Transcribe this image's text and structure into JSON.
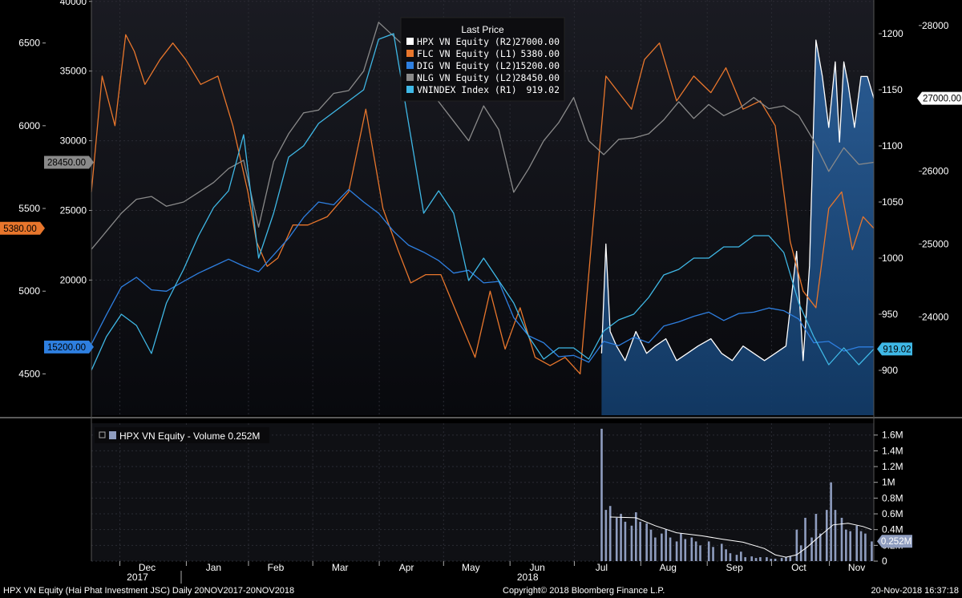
{
  "chart_data": [
    {
      "type": "line",
      "legend_title": "Last Price",
      "legend_position": "top-center",
      "grid": true,
      "x_ticks": [
        {
          "label": "Dec",
          "date": "2017-12-16"
        },
        {
          "label": "Jan",
          "date": "2018-01-16"
        },
        {
          "label": "Feb",
          "date": "2018-02-14"
        },
        {
          "label": "Mar",
          "date": "2018-03-16"
        },
        {
          "label": "Apr",
          "date": "2018-04-16"
        },
        {
          "label": "May",
          "date": "2018-05-16"
        },
        {
          "label": "Jun",
          "date": "2018-06-16"
        },
        {
          "label": "Jul",
          "date": "2018-07-16"
        },
        {
          "label": "Aug",
          "date": "2018-08-16"
        },
        {
          "label": "Sep",
          "date": "2018-09-16"
        },
        {
          "label": "Oct",
          "date": "2018-10-16"
        },
        {
          "label": "Nov",
          "date": "2018-11-12"
        }
      ],
      "year_labels": [
        {
          "label": "2017",
          "date": "2017-12-16"
        },
        {
          "label": "2018",
          "date": "2018-06-16"
        }
      ],
      "x_range": [
        "2017-11-20",
        "2018-11-20"
      ],
      "axes": {
        "L1": {
          "side": "left-outer",
          "ticks": [
            "6500",
            "6000",
            "5500",
            "5000",
            "4500"
          ],
          "range": [
            4250,
            6760
          ]
        },
        "L2": {
          "side": "left-inner",
          "ticks": [
            "40000",
            "35000",
            "30000",
            "25000",
            "20000"
          ],
          "range": [
            10300,
            40100
          ]
        },
        "R1": {
          "side": "right-inner",
          "ticks": [
            "1200",
            "1150",
            "1100",
            "1050",
            "1000",
            "950",
            "900"
          ],
          "range": [
            860,
            1230
          ]
        },
        "R2": {
          "side": "right-outer",
          "ticks": [
            "28000",
            "26000",
            "25000",
            "24000"
          ],
          "range": [
            22650,
            28350
          ]
        }
      },
      "series": [
        {
          "name": "HPX VN Equity",
          "axis_tag": "(R2)",
          "value": "27000.00",
          "color": "#ffffff",
          "fill": true,
          "dates": [
            "2018-07-16",
            "2018-07-18",
            "2018-07-20",
            "2018-07-23",
            "2018-07-27",
            "2018-08-01",
            "2018-08-06",
            "2018-08-10",
            "2018-08-15",
            "2018-08-20",
            "2018-08-25",
            "2018-08-30",
            "2018-09-05",
            "2018-09-10",
            "2018-09-15",
            "2018-09-20",
            "2018-09-25",
            "2018-09-30",
            "2018-10-05",
            "2018-10-10",
            "2018-10-15",
            "2018-10-18",
            "2018-10-21",
            "2018-10-24",
            "2018-10-27",
            "2018-10-30",
            "2018-11-02",
            "2018-11-04",
            "2018-11-06",
            "2018-11-08",
            "2018-11-11",
            "2018-11-14",
            "2018-11-17",
            "2018-11-20"
          ],
          "values": [
            23500,
            25000,
            23800,
            23600,
            23400,
            23800,
            23500,
            23600,
            23700,
            23400,
            23500,
            23600,
            23700,
            23500,
            23400,
            23600,
            23500,
            23400,
            23500,
            23600,
            24900,
            23400,
            24700,
            27800,
            27300,
            26600,
            27500,
            26400,
            27500,
            27200,
            26600,
            27300,
            27300,
            27000
          ]
        },
        {
          "name": "FLC VN Equity",
          "axis_tag": "(L1)",
          "value": "5380.00",
          "color": "#e8762c",
          "fill": false,
          "dates": [
            "2017-11-20",
            "2017-11-25",
            "2017-12-01",
            "2017-12-06",
            "2017-12-10",
            "2017-12-15",
            "2017-12-22",
            "2017-12-28",
            "2018-01-03",
            "2018-01-10",
            "2018-01-18",
            "2018-01-25",
            "2018-02-01",
            "2018-02-05",
            "2018-02-10",
            "2018-02-15",
            "2018-02-22",
            "2018-03-01",
            "2018-03-10",
            "2018-03-20",
            "2018-03-28",
            "2018-04-05",
            "2018-04-12",
            "2018-04-18",
            "2018-04-25",
            "2018-05-02",
            "2018-05-10",
            "2018-05-18",
            "2018-05-25",
            "2018-06-01",
            "2018-06-08",
            "2018-06-15",
            "2018-06-22",
            "2018-06-29",
            "2018-07-06",
            "2018-07-12",
            "2018-07-18",
            "2018-07-24",
            "2018-07-30",
            "2018-08-05",
            "2018-08-12",
            "2018-08-20",
            "2018-08-28",
            "2018-09-05",
            "2018-09-12",
            "2018-09-20",
            "2018-09-28",
            "2018-10-05",
            "2018-10-12",
            "2018-10-18",
            "2018-10-24",
            "2018-10-30",
            "2018-11-05",
            "2018-11-10",
            "2018-11-15",
            "2018-11-20"
          ],
          "values": [
            5600,
            6300,
            6000,
            6550,
            6450,
            6250,
            6400,
            6500,
            6400,
            6250,
            6300,
            6000,
            5600,
            5300,
            5150,
            5200,
            5400,
            5400,
            5450,
            5600,
            6100,
            5500,
            5250,
            5050,
            5100,
            5100,
            4850,
            4600,
            5000,
            4650,
            4900,
            4600,
            4550,
            4600,
            4500,
            5400,
            6300,
            6200,
            6100,
            6400,
            6500,
            6150,
            6300,
            6200,
            6350,
            6100,
            6150,
            6000,
            5300,
            5000,
            4900,
            5500,
            5600,
            5250,
            5450,
            5380
          ]
        },
        {
          "name": "DIG VN Equity",
          "axis_tag": "(L2)",
          "value": "15200.00",
          "color": "#2e7fe0",
          "fill": false,
          "dates": [
            "2017-11-20",
            "2017-11-27",
            "2017-12-04",
            "2017-12-11",
            "2017-12-18",
            "2017-12-25",
            "2018-01-02",
            "2018-01-09",
            "2018-01-16",
            "2018-01-23",
            "2018-01-30",
            "2018-02-06",
            "2018-02-13",
            "2018-02-20",
            "2018-02-27",
            "2018-03-06",
            "2018-03-13",
            "2018-03-20",
            "2018-03-27",
            "2018-04-03",
            "2018-04-10",
            "2018-04-17",
            "2018-04-24",
            "2018-05-01",
            "2018-05-08",
            "2018-05-15",
            "2018-05-22",
            "2018-05-29",
            "2018-06-05",
            "2018-06-12",
            "2018-06-19",
            "2018-06-26",
            "2018-07-03",
            "2018-07-10",
            "2018-07-17",
            "2018-07-24",
            "2018-07-31",
            "2018-08-07",
            "2018-08-14",
            "2018-08-21",
            "2018-08-28",
            "2018-09-04",
            "2018-09-11",
            "2018-09-18",
            "2018-09-25",
            "2018-10-02",
            "2018-10-09",
            "2018-10-16",
            "2018-10-23",
            "2018-10-30",
            "2018-11-06",
            "2018-11-13",
            "2018-11-20"
          ],
          "values": [
            15400,
            17500,
            19500,
            20200,
            19300,
            19200,
            19900,
            20500,
            21000,
            21500,
            21000,
            20600,
            21800,
            23000,
            24500,
            25600,
            25400,
            26500,
            25600,
            24800,
            23500,
            22500,
            22000,
            21400,
            20500,
            20700,
            19800,
            19900,
            17300,
            16000,
            15500,
            14500,
            14600,
            14100,
            15600,
            15300,
            15900,
            15500,
            16700,
            17000,
            17400,
            17700,
            17100,
            17600,
            17700,
            18000,
            17800,
            17200,
            15500,
            15600,
            14900,
            15200,
            15200
          ]
        },
        {
          "name": "NLG VN Equity",
          "axis_tag": "(L2)",
          "value": "28450.00",
          "color": "#8a8a8a",
          "fill": false,
          "dates": [
            "2017-11-20",
            "2017-11-27",
            "2017-12-04",
            "2017-12-11",
            "2017-12-18",
            "2017-12-25",
            "2018-01-02",
            "2018-01-09",
            "2018-01-16",
            "2018-01-23",
            "2018-01-30",
            "2018-02-06",
            "2018-02-13",
            "2018-02-20",
            "2018-02-27",
            "2018-03-06",
            "2018-03-13",
            "2018-03-20",
            "2018-03-27",
            "2018-04-03",
            "2018-04-10",
            "2018-04-17",
            "2018-04-24",
            "2018-05-01",
            "2018-05-08",
            "2018-05-15",
            "2018-05-22",
            "2018-05-29",
            "2018-06-05",
            "2018-06-12",
            "2018-06-19",
            "2018-06-26",
            "2018-07-03",
            "2018-07-10",
            "2018-07-17",
            "2018-07-24",
            "2018-07-31",
            "2018-08-07",
            "2018-08-14",
            "2018-08-21",
            "2018-08-28",
            "2018-09-04",
            "2018-09-11",
            "2018-09-18",
            "2018-09-25",
            "2018-10-02",
            "2018-10-09",
            "2018-10-16",
            "2018-10-23",
            "2018-10-30",
            "2018-11-06",
            "2018-11-13",
            "2018-11-20"
          ],
          "values": [
            22200,
            23500,
            24800,
            25800,
            26000,
            25300,
            25600,
            26300,
            27000,
            28000,
            28600,
            23800,
            28500,
            30500,
            32000,
            32200,
            33400,
            33600,
            35000,
            38500,
            37500,
            36500,
            33800,
            32800,
            31400,
            30000,
            32500,
            30800,
            26300,
            28000,
            30000,
            31300,
            33100,
            30000,
            29000,
            30100,
            30200,
            30500,
            31500,
            32800,
            31600,
            32600,
            31800,
            32300,
            33100,
            32300,
            32500,
            31800,
            30000,
            27800,
            29500,
            28300,
            28450
          ]
        },
        {
          "name": "VNINDEX Index",
          "axis_tag": "(R1)",
          "value": "919.02",
          "color": "#3fb8e6",
          "fill": false,
          "dates": [
            "2017-11-20",
            "2017-11-27",
            "2017-12-04",
            "2017-12-11",
            "2017-12-18",
            "2017-12-25",
            "2018-01-02",
            "2018-01-09",
            "2018-01-16",
            "2018-01-23",
            "2018-01-30",
            "2018-02-06",
            "2018-02-13",
            "2018-02-20",
            "2018-02-27",
            "2018-03-06",
            "2018-03-13",
            "2018-03-20",
            "2018-03-27",
            "2018-04-03",
            "2018-04-10",
            "2018-04-17",
            "2018-04-24",
            "2018-05-01",
            "2018-05-08",
            "2018-05-15",
            "2018-05-22",
            "2018-05-29",
            "2018-06-05",
            "2018-06-12",
            "2018-06-19",
            "2018-06-26",
            "2018-07-03",
            "2018-07-10",
            "2018-07-17",
            "2018-07-24",
            "2018-07-31",
            "2018-08-07",
            "2018-08-14",
            "2018-08-21",
            "2018-08-28",
            "2018-09-04",
            "2018-09-11",
            "2018-09-18",
            "2018-09-25",
            "2018-10-02",
            "2018-10-09",
            "2018-10-16",
            "2018-10-23",
            "2018-10-30",
            "2018-11-06",
            "2018-11-13",
            "2018-11-20"
          ],
          "values": [
            900,
            930,
            950,
            940,
            915,
            960,
            990,
            1020,
            1045,
            1060,
            1110,
            1000,
            1040,
            1090,
            1100,
            1120,
            1130,
            1140,
            1150,
            1195,
            1200,
            1120,
            1040,
            1060,
            1040,
            980,
            1000,
            980,
            960,
            930,
            910,
            920,
            920,
            910,
            935,
            945,
            950,
            965,
            985,
            990,
            1000,
            1000,
            1010,
            1010,
            1020,
            1020,
            1005,
            960,
            930,
            905,
            920,
            905,
            919
          ]
        }
      ]
    },
    {
      "type": "bar",
      "legend_label": "HPX VN Equity - Volume 0.252M",
      "series_name": "HPX VN Equity - Volume",
      "value": "0.252M",
      "grid": true,
      "y_ticks": [
        "1.6M",
        "1.4M",
        "1.2M",
        "1M",
        "0.8M",
        "0.6M",
        "0.4M",
        "0.2M",
        "0"
      ],
      "y_range": [
        0,
        1.75
      ],
      "dates": [
        "2018-07-16",
        "2018-07-18",
        "2018-07-20",
        "2018-07-23",
        "2018-07-25",
        "2018-07-27",
        "2018-07-30",
        "2018-08-01",
        "2018-08-03",
        "2018-08-06",
        "2018-08-08",
        "2018-08-10",
        "2018-08-13",
        "2018-08-15",
        "2018-08-17",
        "2018-08-20",
        "2018-08-22",
        "2018-08-24",
        "2018-08-27",
        "2018-08-29",
        "2018-08-31",
        "2018-09-04",
        "2018-09-06",
        "2018-09-10",
        "2018-09-12",
        "2018-09-14",
        "2018-09-17",
        "2018-09-19",
        "2018-09-21",
        "2018-09-24",
        "2018-09-26",
        "2018-09-28",
        "2018-10-01",
        "2018-10-03",
        "2018-10-05",
        "2018-10-08",
        "2018-10-10",
        "2018-10-12",
        "2018-10-15",
        "2018-10-17",
        "2018-10-19",
        "2018-10-22",
        "2018-10-24",
        "2018-10-26",
        "2018-10-29",
        "2018-10-31",
        "2018-11-02",
        "2018-11-05",
        "2018-11-07",
        "2018-11-09",
        "2018-11-12",
        "2018-11-14",
        "2018-11-16",
        "2018-11-19"
      ],
      "values": [
        1.68,
        0.65,
        0.7,
        0.55,
        0.6,
        0.5,
        0.45,
        0.62,
        0.5,
        0.48,
        0.4,
        0.3,
        0.35,
        0.4,
        0.3,
        0.25,
        0.35,
        0.28,
        0.3,
        0.25,
        0.2,
        0.25,
        0.18,
        0.22,
        0.15,
        0.1,
        0.08,
        0.12,
        0.05,
        0.06,
        0.04,
        0.05,
        0.05,
        0.03,
        0.03,
        0.04,
        0.05,
        0.06,
        0.4,
        0.2,
        0.55,
        0.3,
        0.6,
        0.35,
        0.65,
        1.0,
        0.65,
        0.55,
        0.4,
        0.38,
        0.45,
        0.38,
        0.35,
        0.25
      ],
      "moving_average": {
        "dates": [
          "2018-07-20",
          "2018-08-01",
          "2018-08-10",
          "2018-08-20",
          "2018-09-01",
          "2018-09-10",
          "2018-09-20",
          "2018-09-30",
          "2018-10-05",
          "2018-10-10",
          "2018-10-15",
          "2018-10-20",
          "2018-10-25",
          "2018-11-01",
          "2018-11-08",
          "2018-11-15",
          "2018-11-19"
        ],
        "values": [
          0.56,
          0.55,
          0.45,
          0.36,
          0.32,
          0.28,
          0.24,
          0.16,
          0.08,
          0.05,
          0.08,
          0.18,
          0.3,
          0.46,
          0.48,
          0.44,
          0.4
        ]
      },
      "color": "#8f9dbf"
    }
  ],
  "footer": {
    "left": "HPX VN Equity (Hai Phat Investment JSC)  Daily 20NOV2017-20NOV2018",
    "center": "Copyright© 2018 Bloomberg Finance L.P.",
    "right": "20-Nov-2018 16:37:18"
  }
}
